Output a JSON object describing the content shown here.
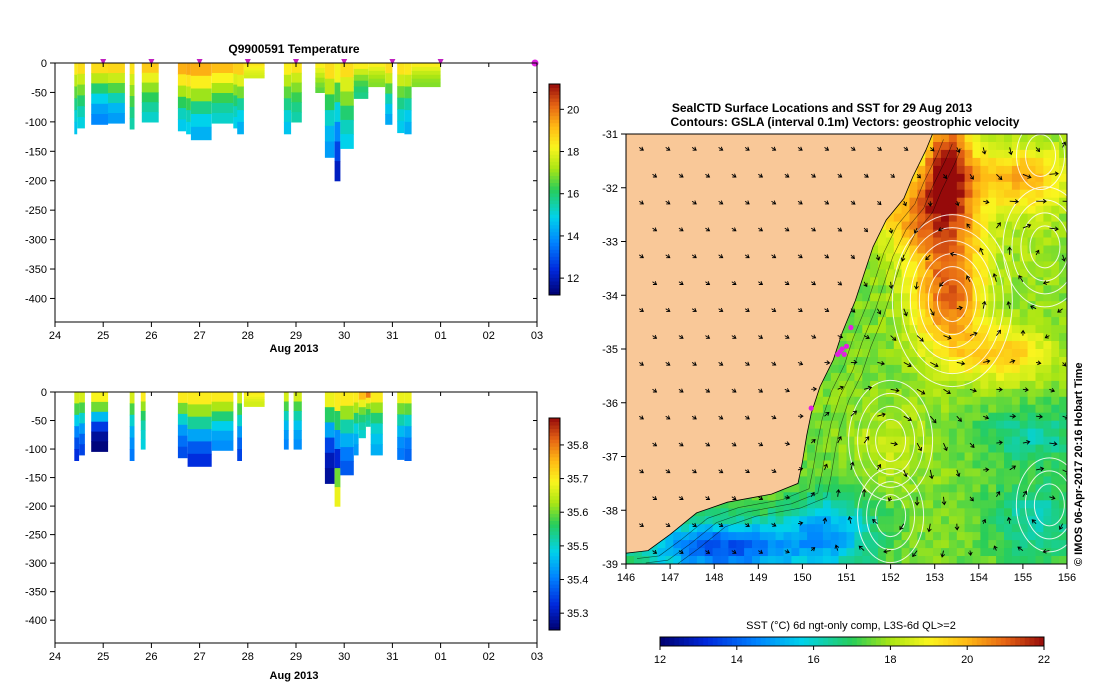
{
  "charts": {
    "temperature": {
      "title": "Q9900591  Temperature",
      "xlabel": "Aug 2013",
      "xticks": [
        "24",
        "25",
        "26",
        "27",
        "28",
        "29",
        "30",
        "31",
        "01",
        "02",
        "03"
      ],
      "yticks": [
        0,
        -50,
        -100,
        -150,
        -200,
        -250,
        -300,
        -350,
        -400
      ],
      "colorbar_ticks": [
        12,
        14,
        16,
        18,
        20
      ],
      "colorbar_range": [
        11.2,
        21.2
      ],
      "profile_markers_day": [
        25,
        26,
        27,
        28,
        29,
        30,
        31,
        32,
        34
      ]
    },
    "salinity": {
      "title": "",
      "xlabel": "Aug 2013",
      "xticks": [
        "24",
        "25",
        "26",
        "27",
        "28",
        "29",
        "30",
        "31",
        "01",
        "02",
        "03"
      ],
      "yticks": [
        0,
        -50,
        -100,
        -150,
        -200,
        -250,
        -300,
        -350,
        -400
      ],
      "colorbar_ticks": [
        35.3,
        35.4,
        35.5,
        35.6,
        35.7,
        35.8
      ],
      "colorbar_range": [
        35.25,
        35.88
      ]
    },
    "map": {
      "title_line1": "SealCTD Surface Locations and SST for 29 Aug 2013",
      "title_line2": "Contours: GSLA (interval 0.1m) Vectors: geostrophic velocity",
      "xticks": [
        146,
        147,
        148,
        149,
        150,
        151,
        152,
        153,
        154,
        155,
        156
      ],
      "yticks": [
        -31,
        -32,
        -33,
        -34,
        -35,
        -36,
        -37,
        -38,
        -39
      ],
      "side_label": "© IMOS 06-Apr-2017 20:16 Hobart Time",
      "colorbar_label": "SST (°C) 6d ngt-only comp, L3S-6d QL>=2",
      "colorbar_ticks": [
        12,
        14,
        16,
        18,
        20,
        22
      ]
    }
  },
  "chart_data": [
    {
      "type": "heatmap",
      "name": "temperature-section",
      "title": "Q9900591  Temperature",
      "xlabel": "Aug 2013",
      "ylabel": "",
      "x_units": "day (24 Aug = 24, 01 Sep = 32)",
      "xlim": [
        24,
        34
      ],
      "ylim": [
        -440,
        0
      ],
      "z_units": "°C",
      "zlim": [
        11.2,
        21.2
      ],
      "profiles": [
        {
          "t0": 24.4,
          "t1": 24.46,
          "depth": 120,
          "z": [
            18.4,
            17.4,
            16.6,
            15.8,
            15.1,
            14.7
          ]
        },
        {
          "t0": 24.46,
          "t1": 24.62,
          "depth": 110,
          "z": [
            18.6,
            17.6,
            16.8,
            16.0,
            15.4,
            15.0
          ]
        },
        {
          "t0": 24.75,
          "t1": 25.1,
          "depth": 104,
          "z": [
            18.6,
            17.4,
            16.0,
            14.9,
            14.2,
            13.8
          ]
        },
        {
          "t0": 25.1,
          "t1": 25.45,
          "depth": 102,
          "z": [
            18.7,
            17.6,
            16.5,
            15.4,
            14.5,
            14.1
          ]
        },
        {
          "t0": 25.55,
          "t1": 25.65,
          "depth": 112,
          "z": [
            18.5,
            17.7,
            17.0,
            16.4,
            15.8,
            15.5
          ]
        },
        {
          "t0": 25.8,
          "t1": 26.15,
          "depth": 100,
          "z": [
            18.9,
            18.0,
            17.0,
            16.2,
            15.6,
            15.2
          ]
        },
        {
          "t0": 26.55,
          "t1": 26.72,
          "depth": 115,
          "z": [
            19.3,
            18.4,
            17.2,
            16.2,
            15.3,
            14.8
          ]
        },
        {
          "t0": 26.72,
          "t1": 26.82,
          "depth": 120,
          "z": [
            19.4,
            18.5,
            17.4,
            16.3,
            15.4,
            14.9
          ]
        },
        {
          "t0": 26.82,
          "t1": 27.25,
          "depth": 130,
          "z": [
            19.3,
            18.3,
            17.1,
            15.8,
            14.9,
            14.4
          ]
        },
        {
          "t0": 27.25,
          "t1": 27.7,
          "depth": 102,
          "z": [
            19.1,
            18.2,
            17.2,
            16.3,
            15.6,
            15.2
          ]
        },
        {
          "t0": 27.7,
          "t1": 27.8,
          "depth": 110,
          "z": [
            18.8,
            17.8,
            16.9,
            16.0,
            15.3,
            14.9
          ]
        },
        {
          "t0": 27.78,
          "t1": 27.92,
          "depth": 120,
          "z": [
            18.8,
            17.9,
            16.8,
            15.6,
            14.9,
            14.4
          ]
        },
        {
          "t0": 27.92,
          "t1": 28.35,
          "depth": 25,
          "z": [
            18.5,
            18.3,
            18.1,
            17.9,
            17.8,
            17.7
          ]
        },
        {
          "t0": 28.75,
          "t1": 28.9,
          "depth": 120,
          "z": [
            18.3,
            17.4,
            16.6,
            15.8,
            15.1,
            14.7
          ]
        },
        {
          "t0": 28.9,
          "t1": 29.12,
          "depth": 100,
          "z": [
            18.5,
            17.6,
            16.9,
            16.3,
            15.8,
            15.5
          ]
        },
        {
          "t0": 29.4,
          "t1": 29.6,
          "depth": 50,
          "z": [
            18.3,
            17.9,
            17.5,
            17.1,
            16.8,
            16.6
          ]
        },
        {
          "t0": 29.6,
          "t1": 29.8,
          "depth": 160,
          "z": [
            18.6,
            17.4,
            16.2,
            15.2,
            14.5,
            14.1
          ]
        },
        {
          "t0": 29.8,
          "t1": 29.92,
          "depth": 200,
          "z": [
            18.1,
            16.4,
            15.0,
            13.8,
            12.8,
            12.1
          ]
        },
        {
          "t0": 29.92,
          "t1": 30.2,
          "depth": 145,
          "z": [
            18.6,
            17.8,
            16.9,
            16.0,
            15.3,
            14.9
          ]
        },
        {
          "t0": 30.2,
          "t1": 30.5,
          "depth": 60,
          "z": [
            18.3,
            17.6,
            16.9,
            16.4,
            16.0,
            15.8
          ]
        },
        {
          "t0": 30.5,
          "t1": 30.85,
          "depth": 40,
          "z": [
            18.3,
            17.9,
            17.5,
            17.2,
            17.0,
            16.9
          ]
        },
        {
          "t0": 30.85,
          "t1": 31.0,
          "depth": 104,
          "z": [
            18.6,
            17.6,
            16.5,
            15.4,
            14.7,
            14.3
          ]
        },
        {
          "t0": 31.1,
          "t1": 31.25,
          "depth": 118,
          "z": [
            18.5,
            17.6,
            16.7,
            15.8,
            15.1,
            14.8
          ]
        },
        {
          "t0": 31.25,
          "t1": 31.4,
          "depth": 120,
          "z": [
            18.4,
            17.5,
            16.5,
            15.5,
            14.8,
            14.4
          ]
        },
        {
          "t0": 31.4,
          "t1": 32.0,
          "depth": 40,
          "z": [
            18.3,
            17.9,
            17.5,
            17.2,
            17.0,
            16.9
          ]
        }
      ]
    },
    {
      "type": "heatmap",
      "name": "salinity-section",
      "title": "",
      "xlabel": "Aug 2013",
      "ylabel": "",
      "x_units": "day (24 Aug = 24, 01 Sep = 32)",
      "xlim": [
        24,
        34
      ],
      "ylim": [
        -440,
        0
      ],
      "z_units": "PSU",
      "zlim": [
        35.25,
        35.88
      ],
      "profiles": [
        {
          "t0": 24.4,
          "t1": 24.5,
          "depth": 120,
          "z": [
            35.66,
            35.58,
            35.48,
            35.41,
            35.36,
            35.33
          ]
        },
        {
          "t0": 24.5,
          "t1": 24.62,
          "depth": 110,
          "z": [
            35.66,
            35.58,
            35.5,
            35.43,
            35.38,
            35.35
          ]
        },
        {
          "t0": 24.75,
          "t1": 25.1,
          "depth": 104,
          "z": [
            35.69,
            35.6,
            35.46,
            35.34,
            35.28,
            35.26
          ]
        },
        {
          "t0": 25.55,
          "t1": 25.65,
          "depth": 120,
          "z": [
            35.66,
            35.58,
            35.5,
            35.45,
            35.42,
            35.4
          ]
        },
        {
          "t0": 25.78,
          "t1": 25.88,
          "depth": 100,
          "z": [
            35.7,
            35.62,
            35.56,
            35.52,
            35.5,
            35.49
          ]
        },
        {
          "t0": 26.55,
          "t1": 26.75,
          "depth": 115,
          "z": [
            35.7,
            35.6,
            35.5,
            35.43,
            35.39,
            35.36
          ]
        },
        {
          "t0": 26.75,
          "t1": 27.25,
          "depth": 130,
          "z": [
            35.7,
            35.62,
            35.53,
            35.44,
            35.37,
            35.33
          ]
        },
        {
          "t0": 27.25,
          "t1": 27.7,
          "depth": 102,
          "z": [
            35.7,
            35.63,
            35.55,
            35.48,
            35.44,
            35.42
          ]
        },
        {
          "t0": 27.78,
          "t1": 27.88,
          "depth": 120,
          "z": [
            35.66,
            35.58,
            35.5,
            35.43,
            35.38,
            35.35
          ]
        },
        {
          "t0": 27.92,
          "t1": 28.35,
          "depth": 25,
          "z": [
            35.7,
            35.69,
            35.68,
            35.67,
            35.66,
            35.66
          ]
        },
        {
          "t0": 28.75,
          "t1": 28.85,
          "depth": 100,
          "z": [
            35.66,
            35.58,
            35.51,
            35.46,
            35.43,
            35.41
          ]
        },
        {
          "t0": 28.95,
          "t1": 29.12,
          "depth": 100,
          "z": [
            35.66,
            35.58,
            35.52,
            35.47,
            35.44,
            35.42
          ]
        },
        {
          "t0": 29.6,
          "t1": 29.8,
          "depth": 160,
          "z": [
            35.68,
            35.56,
            35.44,
            35.35,
            35.3,
            35.28
          ]
        },
        {
          "t0": 29.8,
          "t1": 29.92,
          "depth": 200,
          "z": [
            35.7,
            35.56,
            35.42,
            35.32,
            35.6,
            35.68
          ]
        },
        {
          "t0": 29.92,
          "t1": 30.2,
          "depth": 145,
          "z": [
            35.7,
            35.62,
            35.52,
            35.45,
            35.4,
            35.37
          ]
        },
        {
          "t0": 30.2,
          "t1": 30.3,
          "depth": 110,
          "z": [
            35.7,
            35.63,
            35.55,
            35.49,
            35.45,
            35.43
          ]
        },
        {
          "t0": 30.3,
          "t1": 30.45,
          "depth": 80,
          "z": [
            35.75,
            35.68,
            35.6,
            35.55,
            35.52,
            35.5
          ]
        },
        {
          "t0": 30.45,
          "t1": 30.55,
          "depth": 60,
          "z": [
            35.8,
            35.7,
            35.62,
            35.57,
            35.54,
            35.52
          ]
        },
        {
          "t0": 30.55,
          "t1": 30.8,
          "depth": 110,
          "z": [
            35.7,
            35.62,
            35.55,
            35.5,
            35.47,
            35.45
          ]
        },
        {
          "t0": 31.1,
          "t1": 31.25,
          "depth": 118,
          "z": [
            35.68,
            35.6,
            35.52,
            35.46,
            35.42,
            35.4
          ]
        },
        {
          "t0": 31.25,
          "t1": 31.4,
          "depth": 120,
          "z": [
            35.68,
            35.59,
            35.5,
            35.44,
            35.4,
            35.38
          ]
        }
      ]
    },
    {
      "type": "heatmap",
      "name": "sst-map",
      "title": "SealCTD Surface Locations and SST for 29 Aug 2013",
      "subtitle": "Contours: GSLA (interval 0.1m) Vectors: geostrophic velocity",
      "xlabel": "",
      "ylabel": "",
      "xlim": [
        146,
        156
      ],
      "ylim": [
        -39,
        -31
      ],
      "z_units": "°C",
      "zlim": [
        12,
        22
      ],
      "background_sst": 17.6,
      "warm_features": [
        {
          "lon": 153.3,
          "lat": -31.5,
          "sst": 21.4,
          "rx": 0.55,
          "ry": 0.9
        },
        {
          "lon": 153.3,
          "lat": -33.9,
          "sst": 21.0,
          "rx": 0.85,
          "ry": 1.2
        },
        {
          "lon": 152.8,
          "lat": -32.4,
          "sst": 20.4,
          "rx": 1.2,
          "ry": 0.8
        },
        {
          "lon": 155.0,
          "lat": -31.8,
          "sst": 20.0,
          "rx": 1.1,
          "ry": 0.6
        },
        {
          "lon": 154.6,
          "lat": -35.1,
          "sst": 19.6,
          "rx": 1.1,
          "ry": 0.5
        },
        {
          "lon": 155.3,
          "lat": -33.2,
          "sst": 18.0,
          "rx": 0.6,
          "ry": 0.8
        },
        {
          "lon": 152.0,
          "lat": -36.8,
          "sst": 18.4,
          "rx": 0.9,
          "ry": 0.7
        }
      ],
      "cool_features": [
        {
          "lon": 148.2,
          "lat": -38.7,
          "sst": 13.8,
          "rx": 1.8,
          "ry": 0.5
        },
        {
          "lon": 150.6,
          "lat": -38.4,
          "sst": 15.2,
          "rx": 1.0,
          "ry": 0.7
        },
        {
          "lon": 155.2,
          "lat": -36.6,
          "sst": 16.3,
          "rx": 1.2,
          "ry": 0.5
        },
        {
          "lon": 155.3,
          "lat": -38.2,
          "sst": 16.2,
          "rx": 1.0,
          "ry": 0.8
        }
      ],
      "eddies_gsla": [
        {
          "lon": 153.4,
          "lat": -34.1,
          "levels": 6
        },
        {
          "lon": 155.5,
          "lat": -33.1,
          "levels": 4
        },
        {
          "lon": 152.0,
          "lat": -36.7,
          "levels": 4
        },
        {
          "lon": 152.0,
          "lat": -38.1,
          "levels": 3
        },
        {
          "lon": 155.6,
          "lat": -37.9,
          "levels": 3
        },
        {
          "lon": 155.4,
          "lat": -31.4,
          "levels": 2
        }
      ],
      "coastline": [
        [
          146,
          -38.8
        ],
        [
          146.5,
          -38.75
        ],
        [
          147.0,
          -38.45
        ],
        [
          147.6,
          -38.05
        ],
        [
          148.3,
          -37.85
        ],
        [
          149.3,
          -37.7
        ],
        [
          149.9,
          -37.5
        ],
        [
          150.0,
          -37.1
        ],
        [
          150.1,
          -36.6
        ],
        [
          150.2,
          -36.2
        ],
        [
          150.4,
          -35.7
        ],
        [
          150.7,
          -35.2
        ],
        [
          150.9,
          -34.7
        ],
        [
          151.2,
          -34.1
        ],
        [
          151.4,
          -33.6
        ],
        [
          151.6,
          -33.1
        ],
        [
          151.9,
          -32.6
        ],
        [
          152.3,
          -32.2
        ],
        [
          152.5,
          -31.8
        ],
        [
          152.8,
          -31.3
        ],
        [
          152.95,
          -31.0
        ]
      ],
      "seal_positions": [
        [
          150.9,
          -35.0
        ],
        [
          150.95,
          -35.1
        ],
        [
          150.85,
          -35.05
        ],
        [
          151.0,
          -34.95
        ],
        [
          151.1,
          -34.6
        ],
        [
          150.2,
          -36.1
        ],
        [
          150.8,
          -35.1
        ]
      ]
    }
  ]
}
